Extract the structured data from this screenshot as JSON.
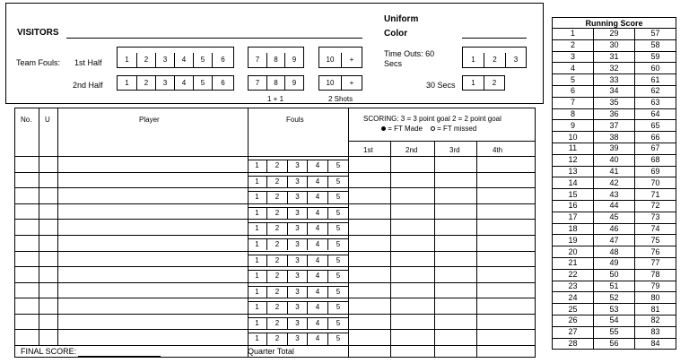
{
  "header": {
    "visitors": "VISITORS",
    "uniform": "Uniform",
    "color": "Color",
    "team_fouls": "Team Fouls:",
    "first_half": "1st Half",
    "second_half": "2nd Half",
    "foul_boxes_a": [
      "1",
      "2",
      "3",
      "4",
      "5",
      "6"
    ],
    "foul_boxes_b": [
      "7",
      "8",
      "9"
    ],
    "foul_box_c": [
      "10",
      "+"
    ],
    "one_plus_one": "1 + 1",
    "two_shots": "2 Shots",
    "timeouts_60": "Time Outs: 60",
    "secs": "Secs",
    "timeouts_60_boxes": [
      "1",
      "2",
      "3"
    ],
    "thirty_secs": "30 Secs",
    "timeouts_30_boxes": [
      "1",
      "2"
    ]
  },
  "grid": {
    "col_no": "No.",
    "col_u": "U",
    "col_player": "Player",
    "col_fouls": "Fouls",
    "scoring_line1": "SCORING: 3 = 3 point goal  2 = 2 point goal",
    "ft_made": "= FT Made",
    "ft_missed": "= FT missed",
    "quarters": [
      "1st",
      "2nd",
      "3rd",
      "4th"
    ],
    "foul_numbers": [
      "1",
      "2",
      "3",
      "4",
      "5"
    ],
    "final_score": "FINAL SCORE:",
    "quarter_total": "Quarter Total"
  },
  "running_score": {
    "title": "Running Score",
    "rows": [
      [
        "1",
        "29",
        "57"
      ],
      [
        "2",
        "30",
        "58"
      ],
      [
        "3",
        "31",
        "59"
      ],
      [
        "4",
        "32",
        "60"
      ],
      [
        "5",
        "33",
        "61"
      ],
      [
        "6",
        "34",
        "62"
      ],
      [
        "7",
        "35",
        "63"
      ],
      [
        "8",
        "36",
        "64"
      ],
      [
        "9",
        "37",
        "65"
      ],
      [
        "10",
        "38",
        "66"
      ],
      [
        "11",
        "39",
        "67"
      ],
      [
        "12",
        "40",
        "68"
      ],
      [
        "13",
        "41",
        "69"
      ],
      [
        "14",
        "42",
        "70"
      ],
      [
        "15",
        "43",
        "71"
      ],
      [
        "16",
        "44",
        "72"
      ],
      [
        "17",
        "45",
        "73"
      ],
      [
        "18",
        "46",
        "74"
      ],
      [
        "19",
        "47",
        "75"
      ],
      [
        "20",
        "48",
        "76"
      ],
      [
        "21",
        "49",
        "77"
      ],
      [
        "22",
        "50",
        "78"
      ],
      [
        "23",
        "51",
        "79"
      ],
      [
        "24",
        "52",
        "80"
      ],
      [
        "25",
        "53",
        "81"
      ],
      [
        "26",
        "54",
        "82"
      ],
      [
        "27",
        "55",
        "83"
      ],
      [
        "28",
        "56",
        "84"
      ]
    ]
  }
}
